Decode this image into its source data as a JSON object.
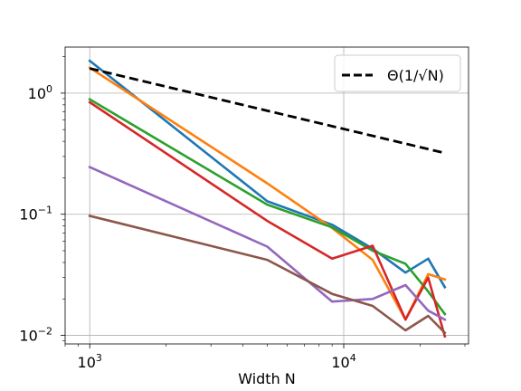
{
  "chart_data": {
    "type": "line",
    "title": "",
    "xlabel": "Width N",
    "ylabel": "",
    "xscale": "log",
    "yscale": "log",
    "xlim": [
      800,
      31000
    ],
    "ylim": [
      0.0085,
      2.4
    ],
    "grid": true,
    "legend": {
      "placement": "top-right",
      "entries": [
        "Θ(1/√N)"
      ]
    },
    "x_ticks": [
      {
        "value": 1000,
        "base": "10",
        "exp": "3"
      },
      {
        "value": 10000,
        "base": "10",
        "exp": "4"
      }
    ],
    "y_ticks": [
      {
        "value": 1,
        "base": "10",
        "exp": "0"
      },
      {
        "value": 0.1,
        "base": "10",
        "exp": "−1"
      },
      {
        "value": 0.01,
        "base": "10",
        "exp": "−2"
      }
    ],
    "x": [
      1000,
      5000,
      9000,
      13000,
      17500,
      21500,
      25000
    ],
    "series": [
      {
        "name": "",
        "color": "#1f77b4",
        "values": [
          1.85,
          0.128,
          0.082,
          0.052,
          0.033,
          0.043,
          0.025
        ]
      },
      {
        "name": "",
        "color": "#ff7f0e",
        "values": [
          1.62,
          0.18,
          0.077,
          0.042,
          0.0135,
          0.032,
          0.029
        ]
      },
      {
        "name": "",
        "color": "#2ca02c",
        "values": [
          0.89,
          0.12,
          0.078,
          0.05,
          0.039,
          0.023,
          0.015
        ]
      },
      {
        "name": "",
        "color": "#d62728",
        "values": [
          0.84,
          0.088,
          0.043,
          0.055,
          0.0135,
          0.03,
          0.0098
        ]
      },
      {
        "name": "",
        "color": "#9467bd",
        "values": [
          0.245,
          0.054,
          0.019,
          0.02,
          0.026,
          0.016,
          0.0135
        ]
      },
      {
        "name": "",
        "color": "#8c564b",
        "values": [
          0.097,
          0.042,
          0.022,
          0.0175,
          0.011,
          0.0145,
          0.0105
        ]
      }
    ],
    "reference_line": {
      "name": "Θ(1/√N)",
      "color": "#000000",
      "style": "dashed",
      "x": [
        1000,
        25000
      ],
      "values": [
        1.6,
        0.32
      ]
    }
  }
}
